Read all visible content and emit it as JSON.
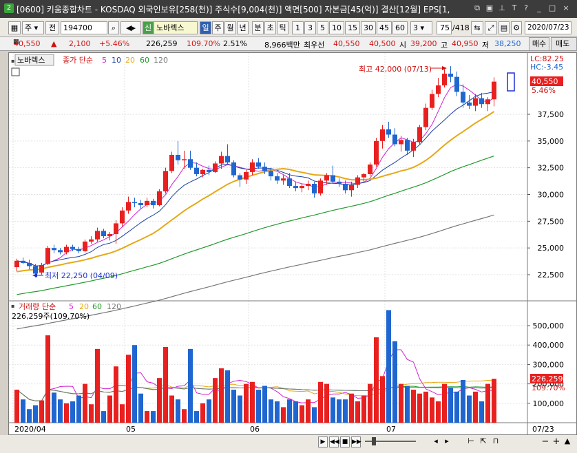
{
  "titlebar": {
    "num": "2",
    "title": "[0600] 키움종합차트 - KOSDAQ 외국인보유[258(천)] 주식수[9,004(천)] 액면[500] 자본금[45(억)] 결산[12월] EPS[1,"
  },
  "toolbar": {
    "type": "주",
    "prev": "전",
    "code": "194700",
    "badge": "신",
    "name": "노바렉스",
    "periods": [
      "일",
      "주",
      "월",
      "년",
      "분",
      "초",
      "틱"
    ],
    "nums": [
      "1",
      "3",
      "5",
      "10",
      "15",
      "30",
      "45",
      "60"
    ],
    "sel": "3",
    "count": "75",
    "total": "/418",
    "date": "2020/07/23"
  },
  "quote": {
    "price": "40,550",
    "arrow": "▲",
    "change": "2,100",
    "pct": "+5.46%",
    "volume": "226,259",
    "vol_ratio": "109.70%",
    "turnover": "2.51%",
    "amount": "8,966백만",
    "best_label": "최우선",
    "ask": "40,550",
    "bid": "40,500",
    "open_label": "시",
    "open": "39,200",
    "high_label": "고",
    "high": "40,950",
    "low_label": "저",
    "low": "38,250"
  },
  "buttons": {
    "buy": "매수",
    "sell": "매도"
  },
  "price_panel": {
    "name_label": "노바렉스",
    "legend_title": "종가 단순",
    "ma": [
      "5",
      "10",
      "20",
      "60",
      "120"
    ],
    "lc": "LC:82.25",
    "hc": "HC:-3.45",
    "cur_price": "40,550",
    "cur_pct": "5.46%",
    "high_annot": "최고 42,000 (07/13)",
    "low_annot": "최저 22,250 (04/09)"
  },
  "volume_panel": {
    "legend_title": "거래량 단순",
    "ma": [
      "5",
      "20",
      "60",
      "120"
    ],
    "info": "226,259주(109.70%)",
    "cur_vol": "226,259",
    "cur_pct": "109.70%"
  },
  "x_axis": {
    "labels": [
      "2020/04",
      "05",
      "06",
      "07"
    ],
    "right": "07/23"
  },
  "colors": {
    "up": "#e8201f",
    "down": "#1f66d0",
    "ma5": "#d020d0",
    "ma10": "#1a3fa0",
    "ma20": "#e6a817",
    "ma60": "#229a2c",
    "ma120": "#777777"
  },
  "chart_data": {
    "type": "candlestick",
    "y_ticks": [
      "22,500",
      "25,000",
      "27,500",
      "30,000",
      "32,500",
      "35,000",
      "37,500"
    ],
    "v_ticks": [
      "100,000",
      "200,000",
      "300,000",
      "400,000",
      "500,000"
    ],
    "ohlc": [
      [
        23200,
        24000,
        22800,
        23800
      ],
      [
        23800,
        24100,
        23500,
        23600
      ],
      [
        23600,
        23900,
        23000,
        23300
      ],
      [
        23300,
        23500,
        22250,
        22600
      ],
      [
        22700,
        23600,
        22500,
        23400
      ],
      [
        23500,
        25200,
        23400,
        25000
      ],
      [
        25000,
        25300,
        24500,
        24800
      ],
      [
        24800,
        25000,
        24400,
        24600
      ],
      [
        24600,
        25300,
        24400,
        25100
      ],
      [
        25100,
        25300,
        24700,
        24900
      ],
      [
        24900,
        25100,
        24500,
        24700
      ],
      [
        24700,
        25800,
        24600,
        25600
      ],
      [
        25600,
        26100,
        25400,
        25800
      ],
      [
        25800,
        26900,
        25600,
        26600
      ],
      [
        26600,
        26800,
        25900,
        26100
      ],
      [
        26100,
        26500,
        25700,
        26300
      ],
      [
        26300,
        27600,
        25400,
        27300
      ],
      [
        27300,
        28800,
        27000,
        28500
      ],
      [
        28500,
        29800,
        28200,
        29300
      ],
      [
        29300,
        29700,
        28800,
        29200
      ],
      [
        29200,
        29500,
        28700,
        29000
      ],
      [
        29000,
        29700,
        28800,
        29400
      ],
      [
        29400,
        29600,
        28700,
        29000
      ],
      [
        29000,
        30500,
        28900,
        30300
      ],
      [
        30300,
        32500,
        30100,
        32200
      ],
      [
        32200,
        34000,
        32000,
        33700
      ],
      [
        33700,
        35000,
        32800,
        33200
      ],
      [
        33200,
        34100,
        32400,
        33300
      ],
      [
        33300,
        34100,
        32300,
        32500
      ],
      [
        32500,
        33000,
        31700,
        31900
      ],
      [
        31900,
        32400,
        31600,
        32300
      ],
      [
        32300,
        32700,
        31800,
        32100
      ],
      [
        32100,
        33100,
        32000,
        32900
      ],
      [
        32900,
        34000,
        32400,
        33600
      ],
      [
        33600,
        34700,
        32800,
        33000
      ],
      [
        33000,
        33200,
        31600,
        31800
      ],
      [
        31800,
        32000,
        30700,
        31400
      ],
      [
        31400,
        32300,
        31000,
        32100
      ],
      [
        32100,
        33300,
        31800,
        33000
      ],
      [
        33000,
        33400,
        32400,
        32600
      ],
      [
        32600,
        33000,
        31900,
        32200
      ],
      [
        32200,
        32500,
        31300,
        31700
      ],
      [
        31700,
        32000,
        31000,
        31300
      ],
      [
        31300,
        31800,
        30900,
        31500
      ],
      [
        31500,
        32000,
        30600,
        30800
      ],
      [
        30800,
        31200,
        30300,
        30600
      ],
      [
        30600,
        31000,
        30200,
        30800
      ],
      [
        30800,
        31300,
        30400,
        31000
      ],
      [
        31000,
        31200,
        29700,
        30100
      ],
      [
        30100,
        31500,
        29900,
        31300
      ],
      [
        31300,
        32000,
        30900,
        31800
      ],
      [
        31800,
        32700,
        31000,
        31200
      ],
      [
        31200,
        31500,
        30700,
        31000
      ],
      [
        31000,
        31300,
        30100,
        30400
      ],
      [
        30400,
        31200,
        29800,
        30900
      ],
      [
        30900,
        31800,
        30600,
        31600
      ],
      [
        31600,
        32000,
        31200,
        31900
      ],
      [
        31900,
        33000,
        31700,
        32800
      ],
      [
        32800,
        35300,
        32600,
        35000
      ],
      [
        35000,
        36500,
        34300,
        36100
      ],
      [
        36100,
        36800,
        35300,
        35600
      ],
      [
        35600,
        36200,
        34500,
        34700
      ],
      [
        34700,
        35500,
        34000,
        35100
      ],
      [
        35100,
        35300,
        33700,
        34100
      ],
      [
        34100,
        35200,
        33500,
        34900
      ],
      [
        34900,
        36500,
        34700,
        36300
      ],
      [
        36300,
        38500,
        36000,
        38100
      ],
      [
        38100,
        39800,
        37900,
        39400
      ],
      [
        39400,
        40900,
        39100,
        40200
      ],
      [
        40200,
        41700,
        40000,
        41300
      ],
      [
        41300,
        42000,
        40500,
        41000
      ],
      [
        41000,
        41500,
        39200,
        39600
      ],
      [
        39600,
        40300,
        38100,
        38600
      ],
      [
        38600,
        39300,
        38000,
        38300
      ],
      [
        38300,
        39400,
        37800,
        39000
      ],
      [
        39000,
        39500,
        38100,
        38450
      ],
      [
        38450,
        39100,
        37800,
        38900
      ],
      [
        38900,
        40950,
        38250,
        40550
      ]
    ],
    "volume": [
      170000,
      120000,
      70000,
      90000,
      115000,
      450000,
      155000,
      120000,
      100000,
      110000,
      140000,
      200000,
      95000,
      380000,
      60000,
      140000,
      290000,
      95000,
      350000,
      400000,
      150000,
      60000,
      60000,
      230000,
      390000,
      140000,
      120000,
      70000,
      380000,
      60000,
      100000,
      120000,
      230000,
      280000,
      270000,
      170000,
      140000,
      200000,
      210000,
      170000,
      190000,
      120000,
      110000,
      80000,
      120000,
      110000,
      90000,
      120000,
      80000,
      210000,
      200000,
      130000,
      120000,
      120000,
      150000,
      110000,
      140000,
      200000,
      440000,
      240000,
      580000,
      420000,
      200000,
      190000,
      170000,
      150000,
      160000,
      130000,
      110000,
      200000,
      180000,
      160000,
      220000,
      140000,
      160000,
      110000,
      200000,
      226259
    ]
  }
}
